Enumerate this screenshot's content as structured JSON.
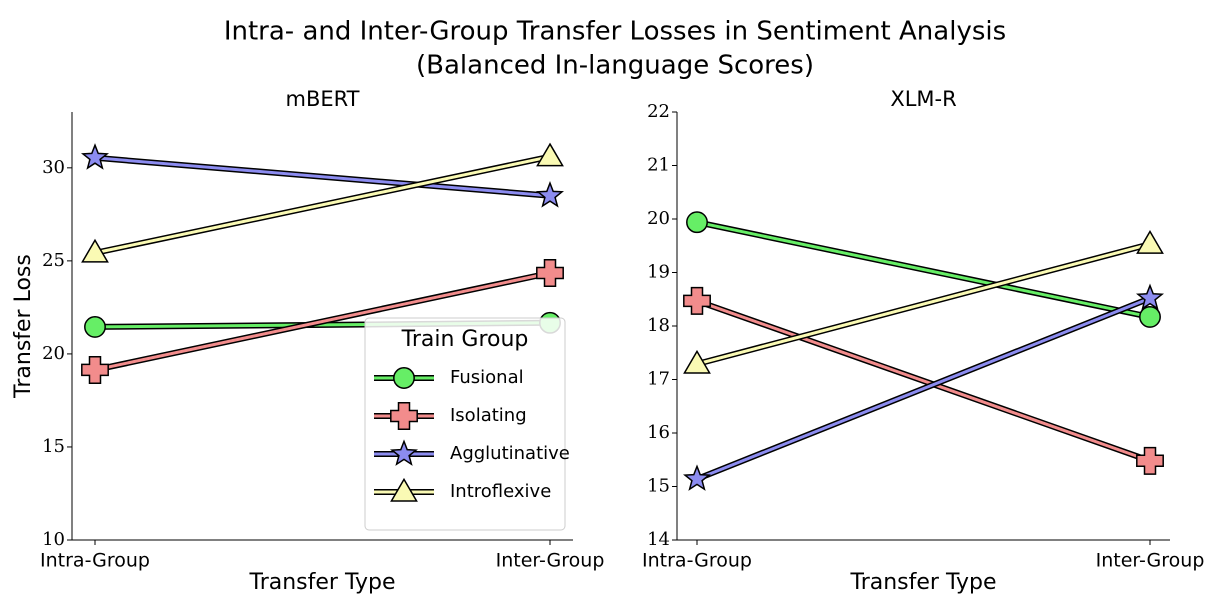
{
  "title": "Intra- and Inter-Group Transfer Losses in Sentiment Analysis",
  "subtitle": "(Balanced In-language Scores)",
  "chart_data": [
    {
      "type": "line",
      "title": "mBERT",
      "xlabel": "Transfer Type",
      "ylabel": "Transfer Loss",
      "categories": [
        "Intra-Group",
        "Inter-Group"
      ],
      "ylim": [
        10,
        33
      ],
      "yticks": [
        10,
        15,
        20,
        25,
        30
      ],
      "legend_title": "Train Group",
      "legend": "lower right",
      "series": [
        {
          "name": "Fusional",
          "color": "#66ee66",
          "marker": "circle",
          "values": [
            21.45,
            21.67
          ]
        },
        {
          "name": "Isolating",
          "color": "#f28c8c",
          "marker": "x",
          "values": [
            19.14,
            24.35
          ]
        },
        {
          "name": "Agglutinative",
          "color": "#8c8cf0",
          "marker": "star",
          "values": [
            30.54,
            28.5
          ]
        },
        {
          "name": "Introflexive",
          "color": "#fafab4",
          "marker": "triangle",
          "values": [
            25.43,
            30.6
          ]
        }
      ]
    },
    {
      "type": "line",
      "title": "XLM-R",
      "xlabel": "Transfer Type",
      "categories": [
        "Intra-Group",
        "Inter-Group"
      ],
      "ylim": [
        14,
        22
      ],
      "yticks": [
        14,
        15,
        16,
        17,
        18,
        19,
        20,
        21,
        22
      ],
      "series": [
        {
          "color": "#66ee66",
          "marker": "circle",
          "values": [
            19.94,
            18.17
          ]
        },
        {
          "color": "#f28c8c",
          "marker": "x",
          "values": [
            18.47,
            15.48
          ]
        },
        {
          "color": "#8c8cf0",
          "marker": "star",
          "values": [
            15.14,
            18.52
          ]
        },
        {
          "color": "#fafab4",
          "marker": "triangle",
          "values": [
            17.29,
            19.53
          ]
        }
      ]
    }
  ]
}
